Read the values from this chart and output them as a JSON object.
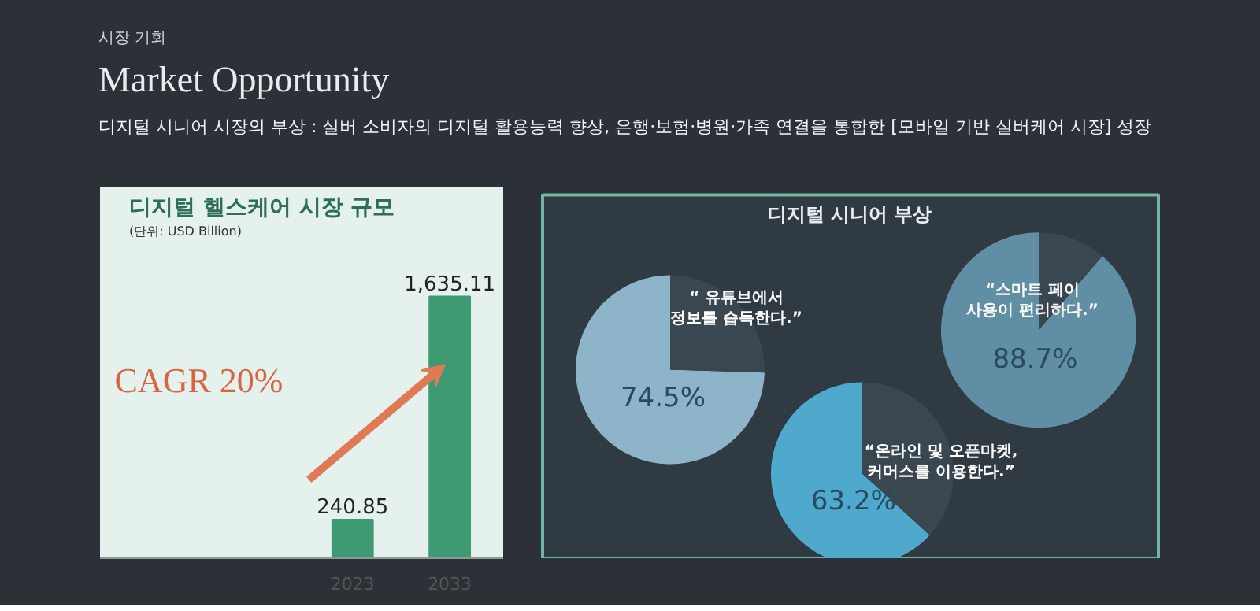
{
  "chart_data": [
    {
      "type": "other",
      "title": "Market Opportunity",
      "subtitle": "디지털 시니어 시장의 부상 : 실버 소비자의 디지털 활용능력 향상, 은행·보험·병원·가족 연결을 통합한 [모바일 기반 실버케어 시장] 성장",
      "annotations": [
        "시장 기회"
      ]
    },
    {
      "type": "bar",
      "title": "디지털 헬스케어 시장 규모",
      "subtitle": "(단위: USD Billion)",
      "categories": [
        "2023",
        "2033"
      ],
      "values": [
        240.85,
        1635.11
      ],
      "value_labels": [
        "240.85",
        "1,635.11"
      ],
      "color": "#3f9a73",
      "annotations": [
        "CAGR 20%"
      ]
    },
    {
      "type": "pie",
      "title": "“ 유튜브에서\n정보를 습득한다.”",
      "annotations": [
        "디지털 시니어 부상"
      ],
      "categories": [
        null,
        null
      ],
      "values": [
        74.5,
        25.5
      ],
      "colors": [
        "#8db4c8",
        "#3a4650"
      ],
      "value_labels": [
        "74.5%",
        null
      ]
    },
    {
      "type": "pie",
      "title": "“스마트 페이\n사용이 편리하다.”",
      "categories": [
        null,
        null
      ],
      "values": [
        88.7,
        11.3
      ],
      "colors": [
        "#5f8ea5",
        "#3a4650"
      ],
      "value_labels": [
        "88.7%",
        null
      ]
    },
    {
      "type": "pie",
      "title": "“온라인 및 오픈마켓,\n커머스를 이용한다.”",
      "categories": [
        null,
        null
      ],
      "values": [
        63.2,
        36.8
      ],
      "colors": [
        "#4fa9cc",
        "#3a4650"
      ],
      "value_labels": [
        "63.2%",
        null
      ]
    }
  ]
}
